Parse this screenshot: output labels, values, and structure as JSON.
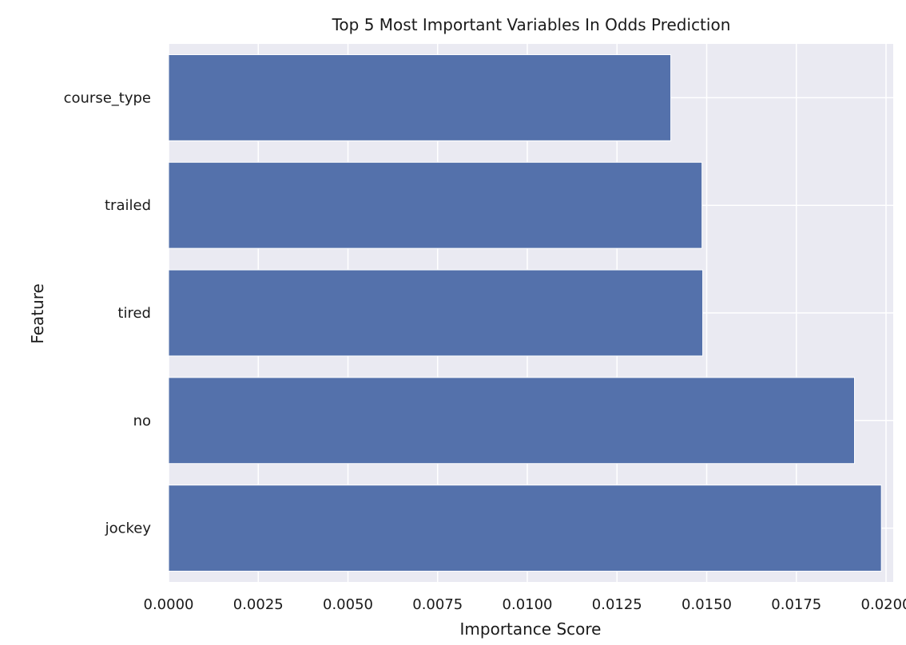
{
  "chart_data": {
    "type": "bar",
    "orientation": "horizontal",
    "title": "Top 5 Most Important Variables In Odds Prediction",
    "xlabel": "Importance Score",
    "ylabel": "Feature",
    "categories": [
      "course_type",
      "trailed",
      "tired",
      "no",
      "jockey"
    ],
    "values": [
      0.014,
      0.01487,
      0.01489,
      0.01912,
      0.01987
    ],
    "xlim": [
      0.0,
      0.0202
    ],
    "xticks": [
      "0.0000",
      "0.0025",
      "0.0050",
      "0.0075",
      "0.0100",
      "0.0125",
      "0.0150",
      "0.0175",
      "0.0200"
    ],
    "grid": true,
    "colors": {
      "bar": "#5471ab",
      "plot_background": "#eaeaf2",
      "grid": "#ffffff"
    }
  }
}
